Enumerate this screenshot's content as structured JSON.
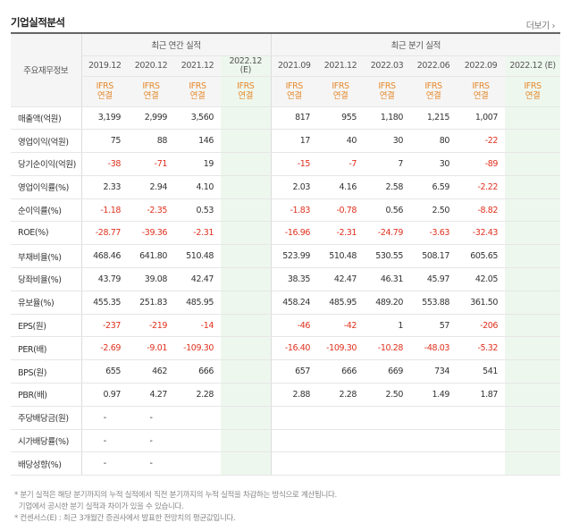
{
  "header": {
    "title": "기업실적분석",
    "more_label": "더보기"
  },
  "table": {
    "corner_label": "주요재무정보",
    "annual_group": "최근 연간 실적",
    "quarter_group": "최근 분기 실적",
    "periods": [
      "2019.12",
      "2020.12",
      "2021.12",
      "2022.12\n(E)",
      "2021.09",
      "2021.12",
      "2022.03",
      "2022.06",
      "2022.09",
      "2022.12 (E)"
    ],
    "ifrs_top": "IFRS",
    "ifrs_bottom": "연결",
    "rows": [
      {
        "label": "매출액(억원)",
        "values": [
          "3,199",
          "2,999",
          "3,560",
          "",
          "817",
          "955",
          "1,180",
          "1,215",
          "1,007",
          ""
        ]
      },
      {
        "label": "영업이익(억원)",
        "values": [
          "75",
          "88",
          "146",
          "",
          "17",
          "40",
          "30",
          "80",
          "-22",
          ""
        ]
      },
      {
        "label": "당기순이익(억원)",
        "values": [
          "-38",
          "-71",
          "19",
          "",
          "-15",
          "-7",
          "7",
          "30",
          "-89",
          ""
        ]
      },
      {
        "label": "영업이익률(%)",
        "values": [
          "2.33",
          "2.94",
          "4.10",
          "",
          "2.03",
          "4.16",
          "2.58",
          "6.59",
          "-2.22",
          ""
        ]
      },
      {
        "label": "순이익률(%)",
        "values": [
          "-1.18",
          "-2.35",
          "0.53",
          "",
          "-1.83",
          "-0.78",
          "0.56",
          "2.50",
          "-8.82",
          ""
        ]
      },
      {
        "label": "ROE(%)",
        "values": [
          "-28.77",
          "-39.36",
          "-2.31",
          "",
          "-16.96",
          "-2.31",
          "-24.79",
          "-3.63",
          "-32.43",
          ""
        ]
      },
      {
        "label": "부채비율(%)",
        "values": [
          "468.46",
          "641.80",
          "510.48",
          "",
          "523.99",
          "510.48",
          "530.55",
          "508.17",
          "605.65",
          ""
        ]
      },
      {
        "label": "당좌비율(%)",
        "values": [
          "43.79",
          "39.08",
          "42.47",
          "",
          "38.35",
          "42.47",
          "46.31",
          "45.97",
          "42.05",
          ""
        ]
      },
      {
        "label": "유보율(%)",
        "values": [
          "455.35",
          "251.83",
          "485.95",
          "",
          "458.24",
          "485.95",
          "489.20",
          "553.88",
          "361.50",
          ""
        ]
      },
      {
        "label": "EPS(원)",
        "values": [
          "-237",
          "-219",
          "-14",
          "",
          "-46",
          "-42",
          "1",
          "57",
          "-206",
          ""
        ]
      },
      {
        "label": "PER(배)",
        "values": [
          "-2.69",
          "-9.01",
          "-109.30",
          "",
          "-16.40",
          "-109.30",
          "-10.28",
          "-48.03",
          "-5.32",
          ""
        ]
      },
      {
        "label": "BPS(원)",
        "values": [
          "655",
          "462",
          "666",
          "",
          "657",
          "666",
          "669",
          "734",
          "541",
          ""
        ]
      },
      {
        "label": "PBR(배)",
        "values": [
          "0.97",
          "4.27",
          "2.28",
          "",
          "2.88",
          "2.28",
          "2.50",
          "1.49",
          "1.87",
          ""
        ]
      },
      {
        "label": "주당배당금(원)",
        "values": [
          "-",
          "-",
          "",
          "",
          "",
          "",
          "",
          "",
          "",
          ""
        ]
      },
      {
        "label": "시가배당률(%)",
        "values": [
          "-",
          "-",
          "",
          "",
          "",
          "",
          "",
          "",
          "",
          ""
        ]
      },
      {
        "label": "배당성향(%)",
        "values": [
          "-",
          "-",
          "",
          "",
          "",
          "",
          "",
          "",
          "",
          ""
        ]
      }
    ]
  },
  "notes": [
    "* 분기 실적은 해당 분기까지의 누적 실적에서 직전 분기까지의 누적 실적을 차감하는 방식으로 계산됩니다.",
    "  기업에서 공시한 분기 실적과 차이가 있을 수 있습니다.",
    "* 컨센서스(E) : 최근 3개월간 증권사에서 발표한 전망치의 평균값입니다."
  ]
}
